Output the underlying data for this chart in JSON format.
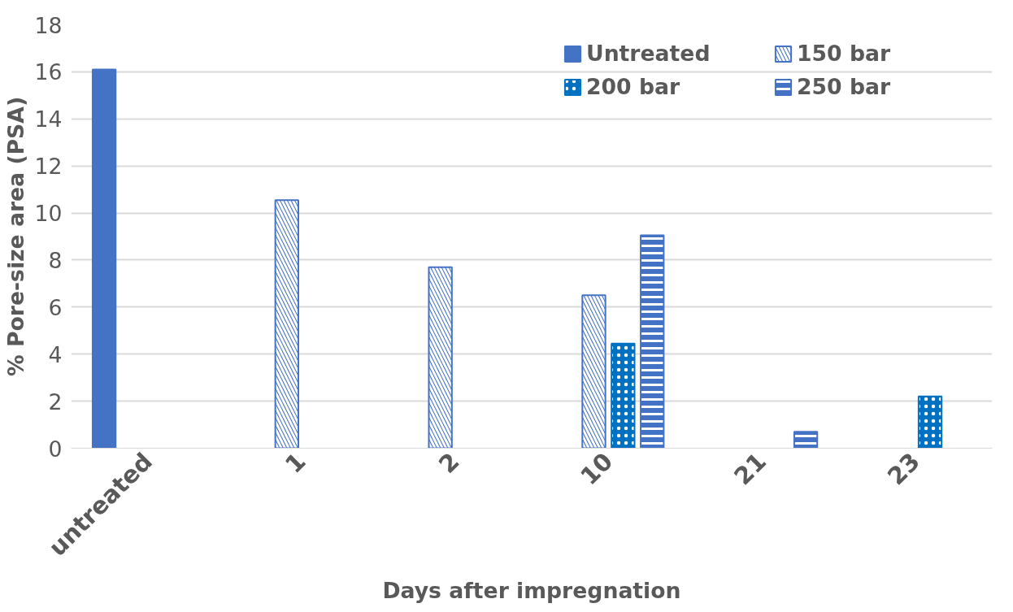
{
  "chart_data": {
    "type": "bar",
    "xlabel": "Days after impregnation",
    "ylabel": "% Pore-size area (PSA)",
    "categories": [
      "untreated",
      "1",
      "2",
      "10",
      "21",
      "23"
    ],
    "series": [
      {
        "name": "Untreated",
        "color": "#4472c4",
        "values": [
          16.1,
          null,
          null,
          null,
          null,
          null
        ]
      },
      {
        "name": "150 bar",
        "color": "#4472c4",
        "values": [
          null,
          10.55,
          7.7,
          6.5,
          null,
          null
        ]
      },
      {
        "name": "200 bar",
        "color": "#0070c0",
        "values": [
          null,
          null,
          null,
          4.45,
          null,
          2.2
        ]
      },
      {
        "name": "250 bar",
        "color": "#4472c4",
        "values": [
          null,
          null,
          null,
          9.05,
          0.7,
          null
        ]
      }
    ],
    "ylim": [
      0,
      18
    ],
    "yticks": [
      0,
      2,
      4,
      6,
      8,
      10,
      12,
      14,
      16,
      18
    ],
    "grid": "y",
    "legend": "top right"
  }
}
